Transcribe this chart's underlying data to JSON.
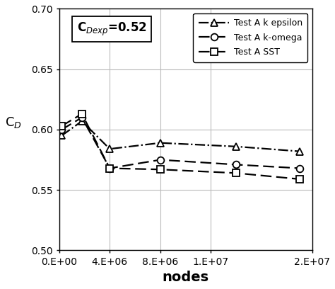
{
  "xlabel": "nodes",
  "ylabel": "C$_D$",
  "annotation": "C$_{Dexp}$=0.52",
  "xlim": [
    0,
    20000000.0
  ],
  "ylim": [
    0.5,
    0.7
  ],
  "xticks": [
    0,
    4000000.0,
    8000000.0,
    12000000.0,
    20000000.0
  ],
  "yticks": [
    0.5,
    0.55,
    0.6,
    0.65,
    0.7
  ],
  "xtick_labels": [
    "0.E+00",
    "4.E+06",
    "8.E+06",
    "1.E+07",
    "2.E+07"
  ],
  "series": [
    {
      "label": "Test A k epsilon",
      "x": [
        200000,
        1800000,
        4000000,
        8000000,
        14000000,
        19000000
      ],
      "y": [
        0.595,
        0.607,
        0.584,
        0.589,
        0.586,
        0.582
      ],
      "marker": "^",
      "linestyle": "-.",
      "color": "black",
      "markersize": 7,
      "markerfacecolor": "white"
    },
    {
      "label": "Test A k-omega",
      "x": [
        200000,
        1800000,
        4000000,
        8000000,
        14000000,
        19000000
      ],
      "y": [
        0.6,
        0.61,
        0.568,
        0.575,
        0.571,
        0.568
      ],
      "marker": "o",
      "linestyle": "--",
      "color": "black",
      "markersize": 7,
      "markerfacecolor": "white"
    },
    {
      "label": "Test A SST",
      "x": [
        200000,
        1800000,
        4000000,
        8000000,
        14000000,
        19000000
      ],
      "y": [
        0.603,
        0.613,
        0.568,
        0.567,
        0.564,
        0.559
      ],
      "marker": "s",
      "linestyle": "--",
      "color": "black",
      "markersize": 7,
      "markerfacecolor": "white"
    }
  ],
  "background_color": "#ffffff",
  "grid_color": "#bbbbbb",
  "annotation_fontsize": 12,
  "xlabel_fontsize": 14,
  "ylabel_fontsize": 13,
  "tick_fontsize": 10,
  "legend_fontsize": 9
}
